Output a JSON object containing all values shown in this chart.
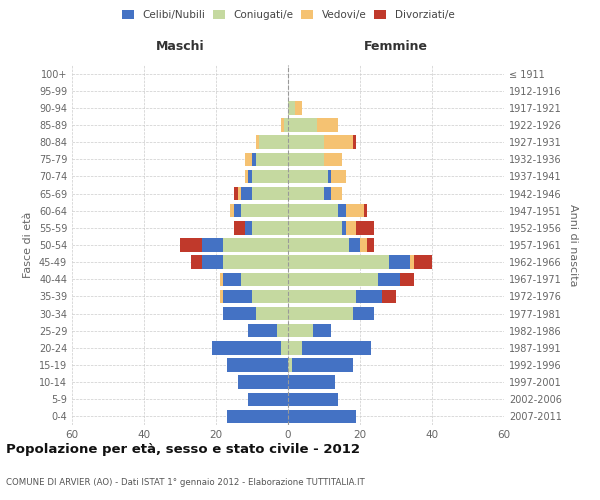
{
  "age_groups": [
    "0-4",
    "5-9",
    "10-14",
    "15-19",
    "20-24",
    "25-29",
    "30-34",
    "35-39",
    "40-44",
    "45-49",
    "50-54",
    "55-59",
    "60-64",
    "65-69",
    "70-74",
    "75-79",
    "80-84",
    "85-89",
    "90-94",
    "95-99",
    "100+"
  ],
  "birth_years": [
    "2007-2011",
    "2002-2006",
    "1997-2001",
    "1992-1996",
    "1987-1991",
    "1982-1986",
    "1977-1981",
    "1972-1976",
    "1967-1971",
    "1962-1966",
    "1957-1961",
    "1952-1956",
    "1947-1951",
    "1942-1946",
    "1937-1941",
    "1932-1936",
    "1927-1931",
    "1922-1926",
    "1917-1921",
    "1912-1916",
    "≤ 1911"
  ],
  "males": {
    "celibi": [
      17,
      11,
      14,
      17,
      19,
      8,
      9,
      8,
      5,
      6,
      6,
      2,
      2,
      3,
      1,
      1,
      0,
      0,
      0,
      0,
      0
    ],
    "coniugati": [
      0,
      0,
      0,
      0,
      2,
      3,
      9,
      10,
      13,
      18,
      18,
      10,
      13,
      10,
      10,
      9,
      8,
      1,
      0,
      0,
      0
    ],
    "vedovi": [
      0,
      0,
      0,
      0,
      0,
      0,
      0,
      1,
      1,
      0,
      0,
      0,
      1,
      1,
      1,
      2,
      1,
      1,
      0,
      0,
      0
    ],
    "divorziati": [
      0,
      0,
      0,
      0,
      0,
      0,
      0,
      0,
      0,
      3,
      6,
      3,
      0,
      1,
      0,
      0,
      0,
      0,
      0,
      0,
      0
    ]
  },
  "females": {
    "nubili": [
      19,
      14,
      13,
      17,
      19,
      5,
      6,
      7,
      6,
      6,
      3,
      1,
      2,
      2,
      1,
      0,
      0,
      0,
      0,
      0,
      0
    ],
    "coniugate": [
      0,
      0,
      0,
      1,
      4,
      7,
      18,
      19,
      25,
      28,
      17,
      15,
      14,
      10,
      11,
      10,
      10,
      8,
      2,
      0,
      0
    ],
    "vedove": [
      0,
      0,
      0,
      0,
      0,
      0,
      0,
      0,
      0,
      1,
      2,
      3,
      5,
      3,
      4,
      5,
      8,
      6,
      2,
      0,
      0
    ],
    "divorziate": [
      0,
      0,
      0,
      0,
      0,
      0,
      0,
      4,
      4,
      5,
      2,
      5,
      1,
      0,
      0,
      0,
      1,
      0,
      0,
      0,
      0
    ]
  },
  "colors": {
    "celibi": "#4472C4",
    "coniugati": "#C5D9A0",
    "vedovi": "#F5C272",
    "divorziati": "#C0392B"
  },
  "xlim": 60,
  "title": "Popolazione per età, sesso e stato civile - 2012",
  "subtitle": "COMUNE DI ARVIER (AO) - Dati ISTAT 1° gennaio 2012 - Elaborazione TUTTITALIA.IT",
  "ylabel_left": "Fasce di età",
  "ylabel_right": "Anni di nascita",
  "xlabel_left": "Maschi",
  "xlabel_right": "Femmine",
  "background_color": "#ffffff",
  "grid_color": "#cccccc"
}
